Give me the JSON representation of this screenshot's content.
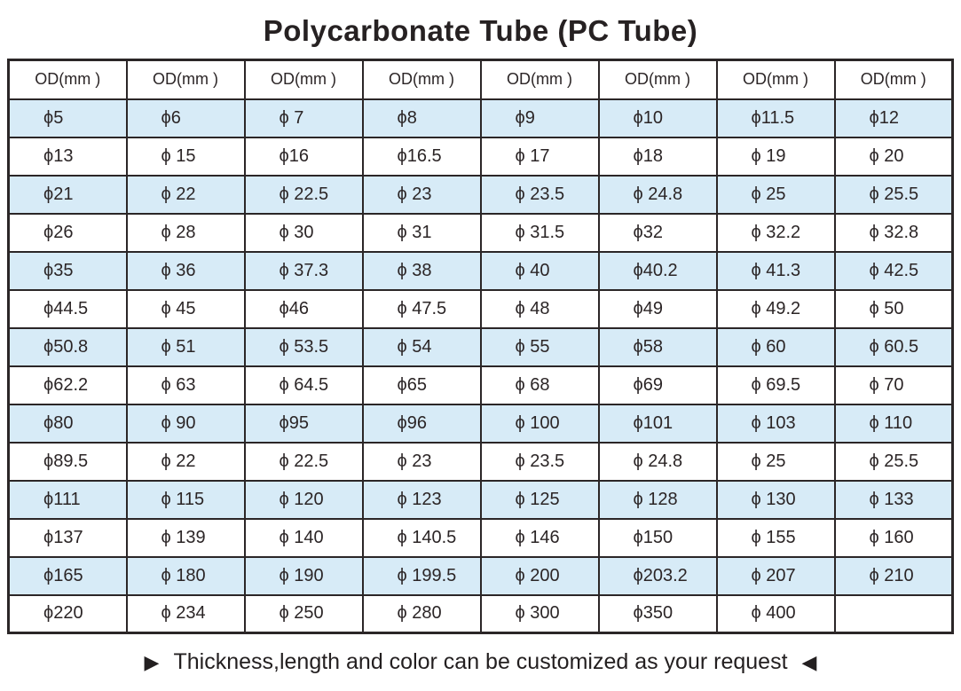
{
  "title": "Polycarbonate Tube (PC Tube)",
  "table": {
    "headers": [
      "OD(mm )",
      "OD(mm )",
      "OD(mm )",
      "OD(mm )",
      "OD(mm )",
      "OD(mm )",
      "OD(mm )",
      "OD(mm )"
    ],
    "rows": [
      [
        "ϕ5",
        "ϕ6",
        "ϕ 7",
        "ϕ8",
        "ϕ9",
        "ϕ10",
        "ϕ11.5",
        "ϕ12"
      ],
      [
        "ϕ13",
        "ϕ 15",
        "ϕ16",
        "ϕ16.5",
        "ϕ 17",
        "ϕ18",
        "ϕ 19",
        "ϕ 20"
      ],
      [
        "ϕ21",
        "ϕ 22",
        "ϕ 22.5",
        "ϕ 23",
        "ϕ 23.5",
        "ϕ 24.8",
        "ϕ 25",
        "ϕ 25.5"
      ],
      [
        "ϕ26",
        "ϕ 28",
        "ϕ 30",
        "ϕ 31",
        "ϕ 31.5",
        "ϕ32",
        "ϕ 32.2",
        "ϕ 32.8"
      ],
      [
        "ϕ35",
        "ϕ 36",
        "ϕ 37.3",
        "ϕ 38",
        "ϕ 40",
        "ϕ40.2",
        "ϕ 41.3",
        "ϕ 42.5"
      ],
      [
        "ϕ44.5",
        "ϕ 45",
        "ϕ46",
        "ϕ 47.5",
        "ϕ 48",
        "ϕ49",
        "ϕ 49.2",
        "ϕ 50"
      ],
      [
        "ϕ50.8",
        "ϕ 51",
        "ϕ 53.5",
        "ϕ 54",
        "ϕ 55",
        "ϕ58",
        "ϕ 60",
        "ϕ 60.5"
      ],
      [
        "ϕ62.2",
        "ϕ 63",
        "ϕ 64.5",
        "ϕ65",
        "ϕ 68",
        "ϕ69",
        "ϕ 69.5",
        "ϕ 70"
      ],
      [
        "ϕ80",
        "ϕ 90",
        "ϕ95",
        "ϕ96",
        "ϕ 100",
        "ϕ101",
        "ϕ 103",
        "ϕ 110"
      ],
      [
        "ϕ89.5",
        "ϕ 22",
        "ϕ 22.5",
        "ϕ 23",
        "ϕ 23.5",
        "ϕ 24.8",
        "ϕ 25",
        "ϕ 25.5"
      ],
      [
        "ϕ111",
        "ϕ 115",
        "ϕ 120",
        "ϕ 123",
        "ϕ 125",
        "ϕ 128",
        "ϕ 130",
        "ϕ 133"
      ],
      [
        "ϕ137",
        "ϕ 139",
        "ϕ 140",
        "ϕ 140.5",
        "ϕ 146",
        "ϕ150",
        "ϕ 155",
        "ϕ 160"
      ],
      [
        "ϕ165",
        "ϕ 180",
        "ϕ 190",
        "ϕ 199.5",
        "ϕ 200",
        "ϕ203.2",
        "ϕ 207",
        "ϕ 210"
      ],
      [
        "ϕ220",
        "ϕ 234",
        "ϕ 250",
        "ϕ 280",
        "ϕ 300",
        "ϕ350",
        "ϕ 400",
        ""
      ]
    ]
  },
  "footer": {
    "left_marker": "▶",
    "text": "Thickness,length and color can be customized as your request",
    "right_marker": "◀"
  },
  "colors": {
    "row_alt_background": "#d7ebf7",
    "row_background": "#ffffff",
    "border": "#2b2627",
    "text": "#262122"
  }
}
